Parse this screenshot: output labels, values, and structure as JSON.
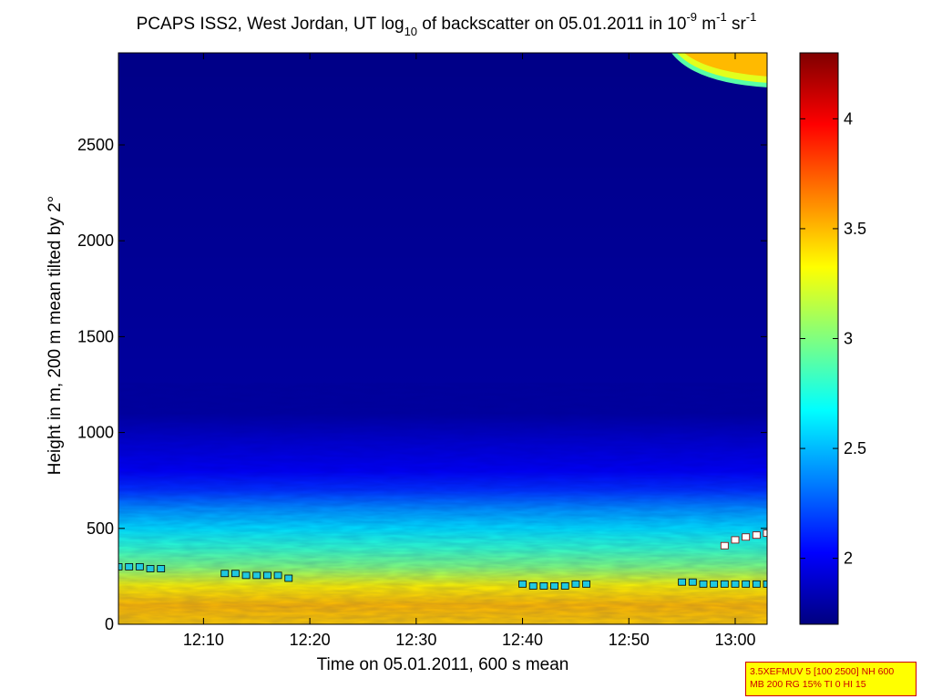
{
  "chart_data": {
    "type": "heatmap",
    "title_parts": {
      "prefix": "PCAPS ISS2, West Jordan, UT log",
      "sub_10": "10",
      "middle": " of backscatter on 05.01.2011 in 10",
      "sup_minus9": "-9",
      "unit_m": " m",
      "sup_minus1_a": "-1",
      "unit_sr": " sr",
      "sup_minus1_b": "-1"
    },
    "xlabel": "Time on 05.01.2011, 600 s mean",
    "ylabel": "Height in m, 200 m mean tilted by 2°",
    "x_range": [
      "12:02",
      "13:03"
    ],
    "x_ticks": [
      "12:10",
      "12:20",
      "12:30",
      "12:40",
      "12:50",
      "13:00"
    ],
    "y_range": [
      0,
      2980
    ],
    "y_ticks": [
      0,
      500,
      1000,
      1500,
      2000,
      2500
    ],
    "y_tick_labels": [
      "0",
      "500",
      "1000",
      "1500",
      "2000",
      "2500"
    ],
    "colorbar": {
      "colormap": "jet",
      "range": [
        1.7,
        4.3
      ],
      "ticks": [
        2,
        2.5,
        3,
        3.5,
        4
      ],
      "tick_labels": [
        "2",
        "2.5",
        "3",
        "3.5",
        "4"
      ]
    },
    "profile_description": [
      {
        "height": 0,
        "value": 3.45
      },
      {
        "height": 100,
        "value": 3.5
      },
      {
        "height": 200,
        "value": 3.35
      },
      {
        "height": 300,
        "value": 3.0
      },
      {
        "height": 400,
        "value": 2.8
      },
      {
        "height": 500,
        "value": 2.6
      },
      {
        "height": 600,
        "value": 2.4
      },
      {
        "height": 700,
        "value": 2.15
      },
      {
        "height": 800,
        "value": 2.0
      },
      {
        "height": 950,
        "value": 1.9
      },
      {
        "height": 1100,
        "value": 1.78
      },
      {
        "height": 2980,
        "value": 1.72
      }
    ],
    "feature_top_right": {
      "time_start": "12:54",
      "height_min": 2800,
      "value": 3.5
    },
    "series": [
      {
        "marker": "square",
        "color": "#20c8e0",
        "points": [
          {
            "x": "12:02",
            "y": 300
          },
          {
            "x": "12:03",
            "y": 300
          },
          {
            "x": "12:04",
            "y": 300
          },
          {
            "x": "12:05",
            "y": 290
          },
          {
            "x": "12:06",
            "y": 290
          },
          {
            "x": "12:12",
            "y": 265
          },
          {
            "x": "12:13",
            "y": 265
          },
          {
            "x": "12:14",
            "y": 255
          },
          {
            "x": "12:15",
            "y": 255
          },
          {
            "x": "12:16",
            "y": 255
          },
          {
            "x": "12:17",
            "y": 255
          },
          {
            "x": "12:18",
            "y": 240
          },
          {
            "x": "12:40",
            "y": 210
          },
          {
            "x": "12:41",
            "y": 200
          },
          {
            "x": "12:42",
            "y": 200
          },
          {
            "x": "12:43",
            "y": 200
          },
          {
            "x": "12:44",
            "y": 200
          },
          {
            "x": "12:45",
            "y": 210
          },
          {
            "x": "12:46",
            "y": 210
          },
          {
            "x": "12:55",
            "y": 220
          },
          {
            "x": "12:56",
            "y": 220
          },
          {
            "x": "12:57",
            "y": 210
          },
          {
            "x": "12:58",
            "y": 210
          },
          {
            "x": "12:59",
            "y": 210
          },
          {
            "x": "13:00",
            "y": 210
          },
          {
            "x": "13:01",
            "y": 210
          },
          {
            "x": "13:02",
            "y": 210
          },
          {
            "x": "13:03",
            "y": 210
          }
        ]
      },
      {
        "marker": "square",
        "color": "#ffffff",
        "points": [
          {
            "x": "12:59",
            "y": 410
          },
          {
            "x": "13:00",
            "y": 440
          },
          {
            "x": "13:01",
            "y": 455
          },
          {
            "x": "13:02",
            "y": 465
          },
          {
            "x": "13:03",
            "y": 475
          }
        ]
      }
    ]
  },
  "info_box": {
    "line1": "3.5XEFMUV 5 [100 2500] NH 600",
    "line2": "MB 200 RG 15% TI 0 HI 15"
  }
}
